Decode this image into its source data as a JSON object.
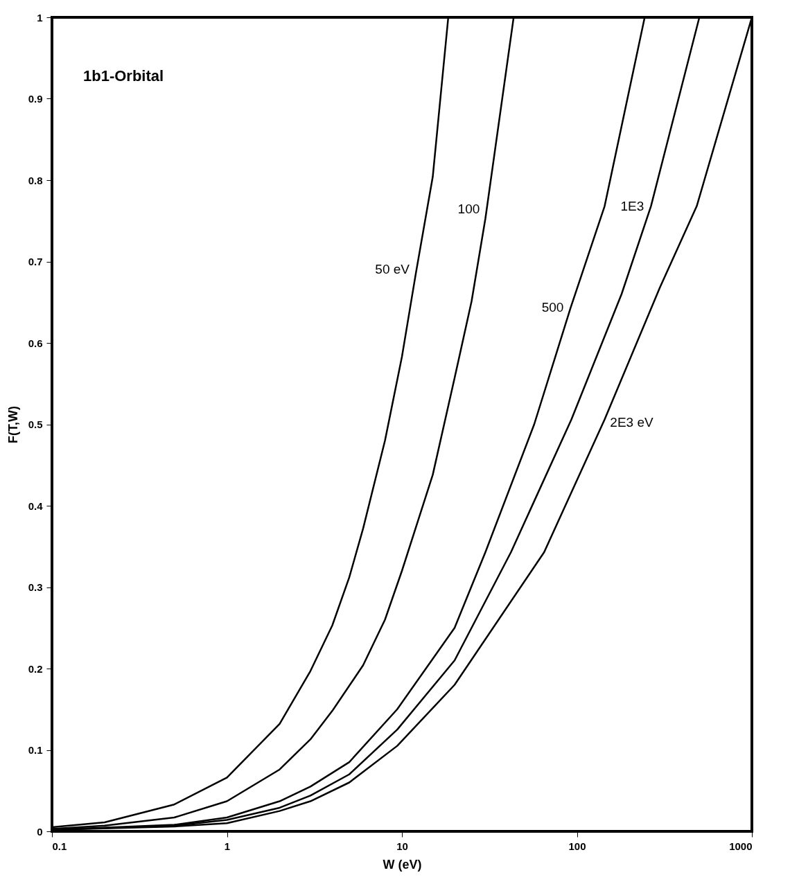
{
  "chart_data": {
    "type": "line",
    "xlabel": "W (eV)",
    "ylabel": "F(T,W)",
    "log": "x",
    "grid": false,
    "legend": false,
    "marker": "none",
    "line_style": "solid",
    "xlim": [
      0.1,
      1000
    ],
    "xticks": [
      0.1,
      1,
      10,
      100,
      1000
    ],
    "ylim": [
      0,
      1
    ],
    "yticks": [
      0,
      0.1,
      0.2,
      0.3,
      0.4,
      0.5,
      0.6,
      0.7,
      0.8,
      0.9,
      1
    ],
    "series": [
      {
        "name": "50 eV",
        "color": "#000000",
        "x": [
          0.1,
          0.2,
          0.5,
          1,
          2,
          3,
          4,
          5,
          6,
          8,
          10,
          12,
          15,
          18.4
        ],
        "values": [
          0.005,
          0.011,
          0.033,
          0.066,
          0.132,
          0.197,
          0.253,
          0.312,
          0.372,
          0.48,
          0.583,
          0.685,
          0.804,
          1
        ]
      },
      {
        "name": "100",
        "color": "#000000",
        "x": [
          0.1,
          0.2,
          0.5,
          1,
          2,
          3,
          4,
          6,
          8,
          10,
          15,
          20,
          25,
          30,
          43.5
        ],
        "values": [
          0.003,
          0.007,
          0.017,
          0.037,
          0.076,
          0.113,
          0.148,
          0.204,
          0.26,
          0.32,
          0.438,
          0.557,
          0.651,
          0.753,
          1
        ]
      },
      {
        "name": "500",
        "color": "#000000",
        "x": [
          0.1,
          0.5,
          1,
          2,
          3,
          5,
          9.4,
          20,
          30,
          57,
          92,
          144,
          244
        ],
        "values": [
          0.002,
          0.008,
          0.017,
          0.037,
          0.055,
          0.085,
          0.15,
          0.25,
          0.343,
          0.5,
          0.643,
          0.768,
          1
        ]
      },
      {
        "name": "1E3",
        "color": "#000000",
        "x": [
          0.1,
          0.5,
          1,
          2,
          3,
          5,
          9.4,
          20,
          42,
          93,
          180,
          265,
          501
        ],
        "values": [
          0.002,
          0.007,
          0.014,
          0.029,
          0.044,
          0.07,
          0.125,
          0.21,
          0.343,
          0.506,
          0.66,
          0.768,
          1
        ]
      },
      {
        "name": "2E3 eV",
        "color": "#000000",
        "x": [
          0.1,
          0.5,
          1,
          2,
          3,
          5,
          9.4,
          20,
          65,
          144,
          298,
          484,
          1000
        ],
        "values": [
          0.002,
          0.006,
          0.01,
          0.025,
          0.037,
          0.06,
          0.105,
          0.18,
          0.343,
          0.506,
          0.668,
          0.768,
          1
        ]
      }
    ],
    "annotations": [
      "1b1-Orbital"
    ]
  }
}
